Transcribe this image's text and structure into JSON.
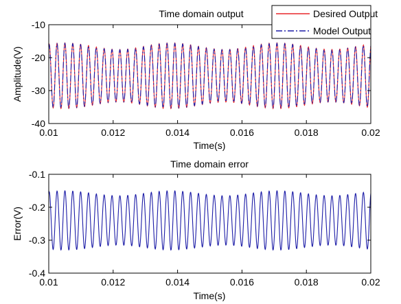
{
  "chart_data": [
    {
      "type": "line",
      "title": "Time domain output",
      "xlabel": "Time(s)",
      "ylabel": "Amplitude(V)",
      "xlim": [
        0.01,
        0.02
      ],
      "ylim": [
        -40,
        -10
      ],
      "xticks": [
        0.01,
        0.012,
        0.014,
        0.016,
        0.018,
        0.02
      ],
      "xtick_labels": [
        "0.01",
        "0.012",
        "0.014",
        "0.016",
        "0.018",
        "0.02"
      ],
      "yticks": [
        -40,
        -30,
        -20,
        -10
      ],
      "ytick_labels": [
        "-40",
        "-30",
        "-20",
        "-10"
      ],
      "grid": false,
      "legend": "top-right",
      "signal": {
        "description_cycles": 41,
        "mean": -25.5,
        "amplitude_min": 8.0,
        "amplitude_max": 10.0,
        "envelope_period_s": 0.0033
      },
      "series": [
        {
          "name": "Desired Output",
          "color": "#e8262a",
          "style": "solid"
        },
        {
          "name": "Model Output",
          "color": "#1a1aa6",
          "style": "dash-dot"
        }
      ]
    },
    {
      "type": "line",
      "title": "Time domain error",
      "xlabel": "Time(s)",
      "ylabel": "Error(V)",
      "xlim": [
        0.01,
        0.02
      ],
      "ylim": [
        -0.4,
        -0.1
      ],
      "xticks": [
        0.01,
        0.012,
        0.014,
        0.016,
        0.018,
        0.02
      ],
      "xtick_labels": [
        "0.01",
        "0.012",
        "0.014",
        "0.016",
        "0.018",
        "0.02"
      ],
      "yticks": [
        -0.4,
        -0.3,
        -0.2,
        -0.1
      ],
      "ytick_labels": [
        "-0.4",
        "-0.3",
        "-0.2",
        "-0.1"
      ],
      "grid": false,
      "signal": {
        "description_cycles": 41,
        "mean": -0.24,
        "amplitude_min": 0.075,
        "amplitude_max": 0.09,
        "envelope_period_s": 0.0033
      },
      "series": [
        {
          "name": "",
          "color": "#1a1aa6",
          "style": "solid"
        }
      ]
    }
  ]
}
